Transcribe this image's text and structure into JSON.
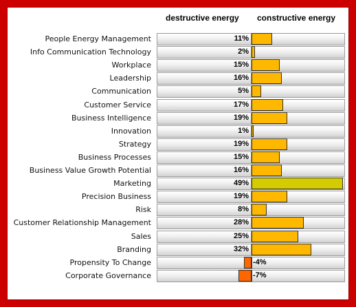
{
  "chart_data": {
    "type": "bar",
    "orientation": "horizontal",
    "column_headers": [
      "destructive energy",
      "constructive energy"
    ],
    "categories": [
      "People Energy Management",
      "Info Communication Technology",
      "Workplace",
      "Leadership",
      "Communication",
      "Customer Service",
      "Business Intelligence",
      "Innovation",
      "Strategy",
      "Business Processes",
      "Business Value Growth Potential",
      "Marketing",
      "Precision Business",
      "Risk",
      "Customer Relationship Management",
      "Sales",
      "Branding",
      "Propensity To Change",
      "Corporate Governance"
    ],
    "values": [
      11,
      2,
      15,
      16,
      5,
      17,
      19,
      1,
      19,
      15,
      16,
      49,
      19,
      8,
      28,
      25,
      32,
      -4,
      -7
    ],
    "value_labels": [
      "11%",
      "2%",
      "15%",
      "16%",
      "5%",
      "17%",
      "19%",
      "1%",
      "19%",
      "15%",
      "16%",
      "49%",
      "19%",
      "8%",
      "28%",
      "25%",
      "32%",
      "-4%",
      "-7%"
    ],
    "unit": "%",
    "xlim": [
      -50,
      50
    ],
    "colors": {
      "positive": "#ffb800",
      "highlight": "#d4cc00",
      "negative": "#ff6600",
      "frame": "#cc0000"
    },
    "highlight_index": 11
  }
}
